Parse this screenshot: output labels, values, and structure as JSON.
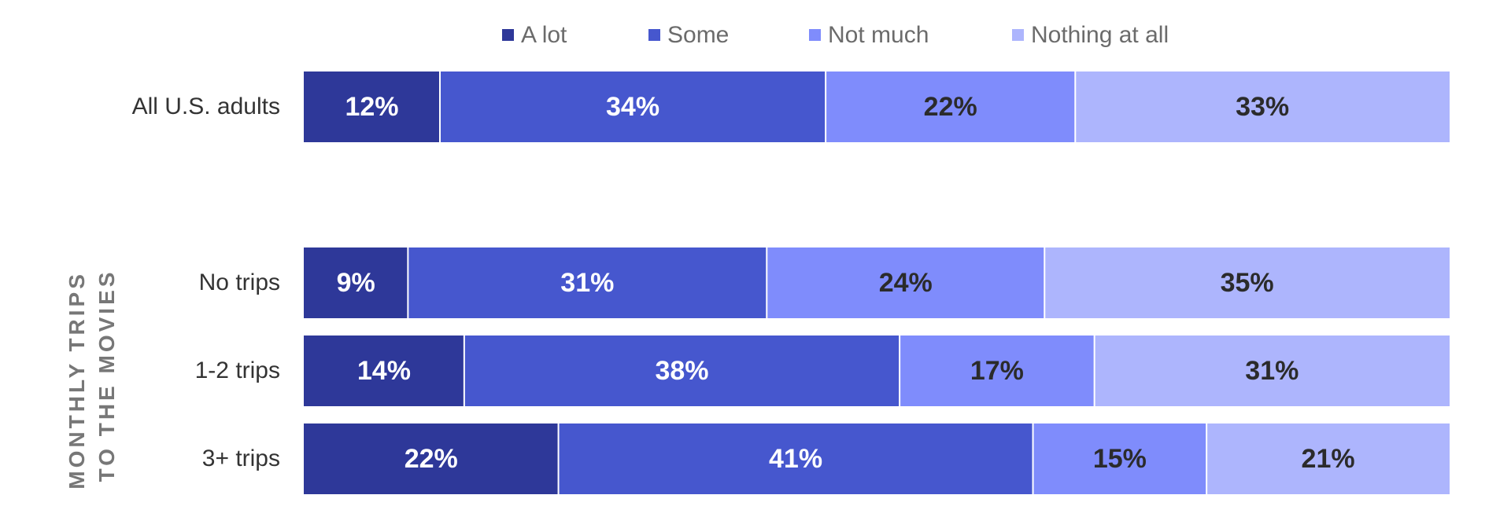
{
  "chart_data": {
    "type": "bar",
    "orientation": "horizontal",
    "stacked": true,
    "categories": [
      "All U.S. adults",
      "No trips",
      "1-2 trips",
      "3+ trips"
    ],
    "series": [
      {
        "name": "A lot",
        "values": [
          12,
          9,
          14,
          22
        ],
        "color": "#2e3899"
      },
      {
        "name": "Some",
        "values": [
          34,
          31,
          38,
          41
        ],
        "color": "#4657ce"
      },
      {
        "name": "Not much",
        "values": [
          22,
          24,
          17,
          15
        ],
        "color": "#7f8cfc"
      },
      {
        "name": "Nothing at all",
        "values": [
          33,
          35,
          31,
          21
        ],
        "color": "#adb5fd"
      }
    ],
    "value_suffix": "%",
    "label_colors": {
      "dark_segments": "#ffffff",
      "light_segments": "#2b2b2b"
    },
    "group_label_lines": [
      "MONTHLY TRIPS",
      "TO THE MOVIES"
    ],
    "legend_position": "top",
    "grid": false
  }
}
